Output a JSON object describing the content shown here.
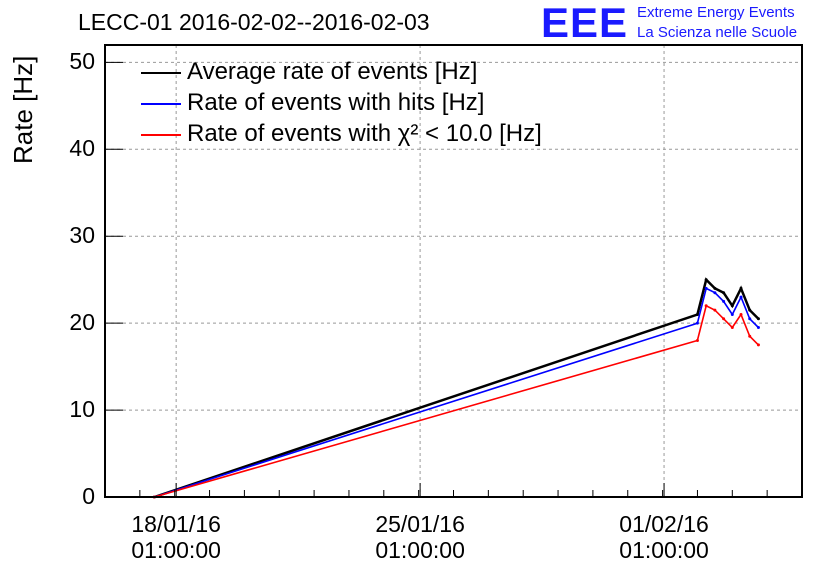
{
  "chart_data": {
    "type": "line",
    "title": "LECC-01 2016-02-02--2016-02-03",
    "ylabel": "Rate [Hz]",
    "xlabel": "",
    "ylim": [
      0,
      52
    ],
    "yticks": [
      0,
      10,
      20,
      30,
      40,
      50
    ],
    "xticks": [
      {
        "value": "2016-01-18 01:00:00",
        "label_date": "18/01/16",
        "label_time": "01:00:00"
      },
      {
        "value": "2016-01-25 01:00:00",
        "label_date": "25/01/16",
        "label_time": "01:00:00"
      },
      {
        "value": "2016-02-01 01:00:00",
        "label_date": "01/02/16",
        "label_time": "01:00:00"
      }
    ],
    "xlim": [
      "2016-01-16 00:00",
      "2016-02-05 00:00"
    ],
    "grid": true,
    "legend_position": "top-left",
    "series": [
      {
        "name": "Average rate of events [Hz]",
        "color": "#000000",
        "x": [
          "2016-01-17 10:00",
          "2016-02-02 00:00",
          "2016-02-02 06:00",
          "2016-02-02 12:00",
          "2016-02-02 18:00",
          "2016-02-03 00:00",
          "2016-02-03 06:00",
          "2016-02-03 12:00",
          "2016-02-03 18:00"
        ],
        "y": [
          0,
          21,
          25,
          24,
          23.5,
          22,
          24,
          21.5,
          20.5
        ]
      },
      {
        "name": "Rate of events with hits [Hz]",
        "color": "#0000ff",
        "x": [
          "2016-01-17 10:00",
          "2016-02-02 00:00",
          "2016-02-02 06:00",
          "2016-02-02 12:00",
          "2016-02-02 18:00",
          "2016-02-03 00:00",
          "2016-02-03 06:00",
          "2016-02-03 12:00",
          "2016-02-03 18:00"
        ],
        "y": [
          0,
          20,
          24,
          23.5,
          22.5,
          21,
          23,
          20.5,
          19.5
        ]
      },
      {
        "name": "Rate of events with χ² < 10.0 [Hz]",
        "color": "#ff0000",
        "x": [
          "2016-01-17 10:00",
          "2016-02-02 00:00",
          "2016-02-02 06:00",
          "2016-02-02 12:00",
          "2016-02-02 18:00",
          "2016-02-03 00:00",
          "2016-02-03 06:00",
          "2016-02-03 12:00",
          "2016-02-03 18:00"
        ],
        "y": [
          0,
          18,
          22,
          21.5,
          20.5,
          19.5,
          21,
          18.5,
          17.5
        ]
      }
    ]
  },
  "logo": {
    "text": "EEE",
    "line1": "Extreme Energy Events",
    "line2": "La Scienza nelle Scuole",
    "color": "#1a1aff"
  }
}
